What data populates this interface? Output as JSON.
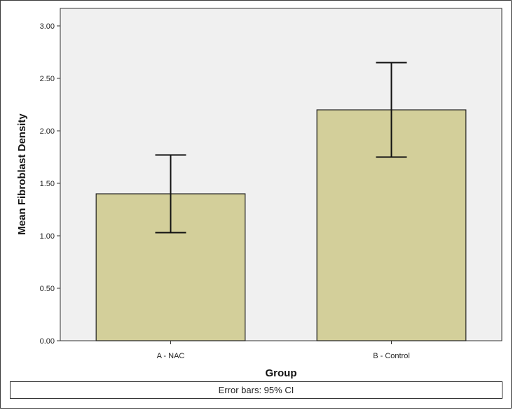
{
  "chart_data": {
    "type": "bar",
    "categories": [
      "A - NAC",
      "B - Control"
    ],
    "values": [
      1.4,
      2.2
    ],
    "error_bars": {
      "lower": [
        1.03,
        1.75
      ],
      "upper": [
        1.77,
        2.65
      ]
    },
    "xlabel": "Group",
    "ylabel": "Mean Fibroblast Density",
    "ylim": [
      0,
      3.0
    ],
    "yticks": [
      "0.00",
      "0.50",
      "1.00",
      "1.50",
      "2.00",
      "2.50",
      "3.00"
    ],
    "ytick_values": [
      0,
      0.5,
      1.0,
      1.5,
      2.0,
      2.5,
      3.0
    ],
    "grid": false,
    "legend": "none",
    "colors": {
      "bar_fill": "#d3cf9a",
      "plot_background": "#f0f0f0",
      "bar_stroke": "#222222",
      "error_bar": "#111111"
    }
  },
  "footnote": "Error bars: 95% CI"
}
